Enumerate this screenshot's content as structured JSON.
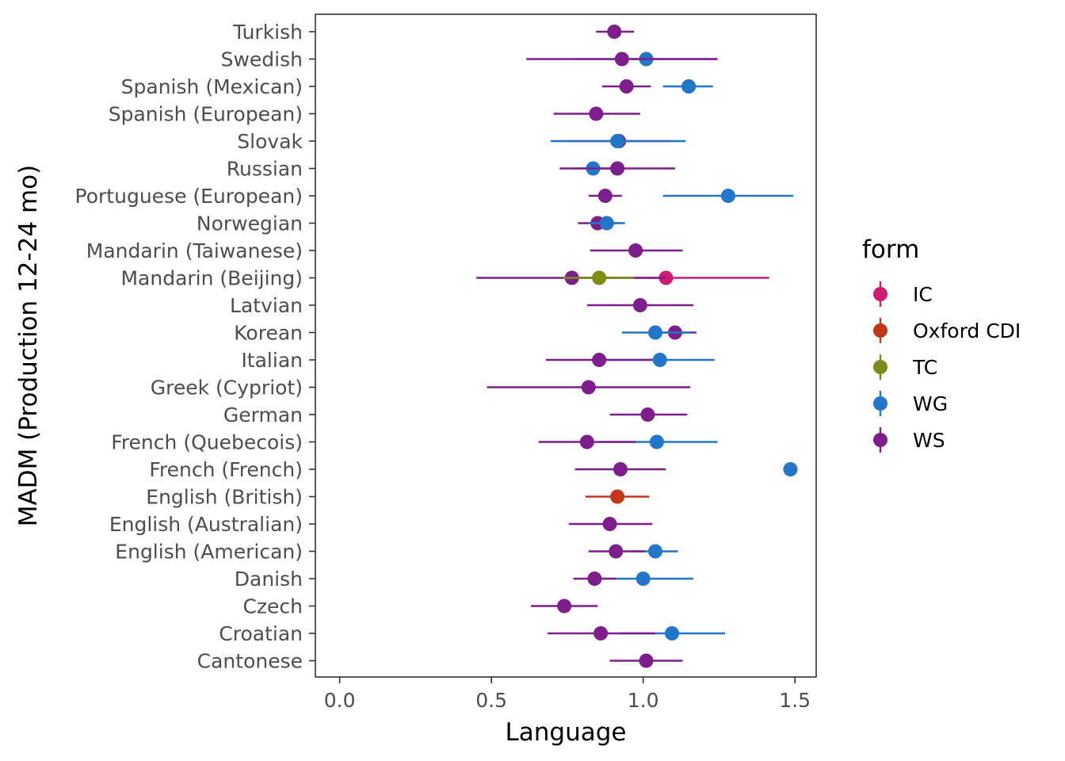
{
  "chart_data": {
    "type": "scatter",
    "xlabel": "Language",
    "ylabel": "MADM (Production 12-24 mo)",
    "xlim": [
      -0.08,
      1.57
    ],
    "x_ticks": [
      "0.0",
      "0.5",
      "1.0",
      "1.5"
    ],
    "x_tick_values": [
      0,
      0.5,
      1.0,
      1.5
    ],
    "grid": false,
    "legend": {
      "title": "form",
      "placement": "right",
      "entries": [
        "IC",
        "Oxford CDI",
        "TC",
        "WG",
        "WS"
      ]
    },
    "colors": {
      "IC": "#d01c70",
      "Oxford CDI": "#c4361a",
      "TC": "#7c8c14",
      "WG": "#2176c9",
      "WS": "#7e1e8c"
    },
    "categories": [
      "Turkish",
      "Swedish",
      "Spanish (Mexican)",
      "Spanish (European)",
      "Slovak",
      "Russian",
      "Portuguese (European)",
      "Norwegian",
      "Mandarin (Taiwanese)",
      "Mandarin (Beijing)",
      "Latvian",
      "Korean",
      "Italian",
      "Greek (Cypriot)",
      "German",
      "French (Quebecois)",
      "French (French)",
      "English (British)",
      "English (Australian)",
      "English (American)",
      "Danish",
      "Czech",
      "Croatian",
      "Cantonese"
    ],
    "points": [
      {
        "language": "Turkish",
        "form": "WS",
        "value": 0.905,
        "lo": 0.845,
        "hi": 0.97
      },
      {
        "language": "Swedish",
        "form": "WG",
        "value": 1.01,
        "lo": 0.775,
        "hi": 1.245
      },
      {
        "language": "Swedish",
        "form": "WS",
        "value": 0.93,
        "lo": 0.615,
        "hi": 1.245
      },
      {
        "language": "Spanish (Mexican)",
        "form": "WG",
        "value": 1.15,
        "lo": 1.065,
        "hi": 1.23
      },
      {
        "language": "Spanish (Mexican)",
        "form": "WS",
        "value": 0.945,
        "lo": 0.865,
        "hi": 1.025
      },
      {
        "language": "Spanish (European)",
        "form": "WS",
        "value": 0.845,
        "lo": 0.705,
        "hi": 0.99
      },
      {
        "language": "Slovak",
        "form": "WS",
        "value": 0.92,
        "lo": 0.75,
        "hi": 1.09
      },
      {
        "language": "Slovak",
        "form": "WG",
        "value": 0.915,
        "lo": 0.695,
        "hi": 1.14
      },
      {
        "language": "Russian",
        "form": "WG",
        "value": 0.835,
        "lo": 0.77,
        "hi": 0.9
      },
      {
        "language": "Russian",
        "form": "WS",
        "value": 0.915,
        "lo": 0.725,
        "hi": 1.105
      },
      {
        "language": "Portuguese (European)",
        "form": "WG",
        "value": 1.28,
        "lo": 1.065,
        "hi": 1.495
      },
      {
        "language": "Portuguese (European)",
        "form": "WS",
        "value": 0.875,
        "lo": 0.82,
        "hi": 0.93
      },
      {
        "language": "Norwegian",
        "form": "WS",
        "value": 0.85,
        "lo": 0.785,
        "hi": 0.915
      },
      {
        "language": "Norwegian",
        "form": "WG",
        "value": 0.88,
        "lo": 0.82,
        "hi": 0.94
      },
      {
        "language": "Mandarin (Taiwanese)",
        "form": "WS",
        "value": 0.975,
        "lo": 0.825,
        "hi": 1.13
      },
      {
        "language": "Mandarin (Beijing)",
        "form": "IC",
        "value": 1.075,
        "lo": 0.735,
        "hi": 1.415
      },
      {
        "language": "Mandarin (Beijing)",
        "form": "WS",
        "value": 0.765,
        "lo": 0.45,
        "hi": 1.075
      },
      {
        "language": "Mandarin (Beijing)",
        "form": "TC",
        "value": 0.855,
        "lo": 0.735,
        "hi": 0.97
      },
      {
        "language": "Latvian",
        "form": "WS",
        "value": 0.99,
        "lo": 0.815,
        "hi": 1.165
      },
      {
        "language": "Korean",
        "form": "WS",
        "value": 1.105,
        "lo": 1.035,
        "hi": 1.175
      },
      {
        "language": "Korean",
        "form": "WG",
        "value": 1.04,
        "lo": 0.93,
        "hi": 1.155
      },
      {
        "language": "Italian",
        "form": "WG",
        "value": 1.055,
        "lo": 0.875,
        "hi": 1.235
      },
      {
        "language": "Italian",
        "form": "WS",
        "value": 0.855,
        "lo": 0.68,
        "hi": 1.03
      },
      {
        "language": "Greek (Cypriot)",
        "form": "WS",
        "value": 0.82,
        "lo": 0.485,
        "hi": 1.155
      },
      {
        "language": "German",
        "form": "WS",
        "value": 1.015,
        "lo": 0.89,
        "hi": 1.145
      },
      {
        "language": "French (Quebecois)",
        "form": "WG",
        "value": 1.045,
        "lo": 0.855,
        "hi": 1.245
      },
      {
        "language": "French (Quebecois)",
        "form": "WS",
        "value": 0.815,
        "lo": 0.655,
        "hi": 0.975
      },
      {
        "language": "French (French)",
        "form": "WS",
        "value": 0.925,
        "lo": 0.775,
        "hi": 1.075
      },
      {
        "language": "French (French)",
        "form": "WG",
        "value": 1.485,
        "lo": 1.485,
        "hi": 1.485
      },
      {
        "language": "English (British)",
        "form": "Oxford CDI",
        "value": 0.915,
        "lo": 0.81,
        "hi": 1.02
      },
      {
        "language": "English (Australian)",
        "form": "WS",
        "value": 0.89,
        "lo": 0.755,
        "hi": 1.03
      },
      {
        "language": "English (American)",
        "form": "WG",
        "value": 1.04,
        "lo": 0.96,
        "hi": 1.115
      },
      {
        "language": "English (American)",
        "form": "WS",
        "value": 0.91,
        "lo": 0.82,
        "hi": 1.005
      },
      {
        "language": "Danish",
        "form": "WG",
        "value": 1.0,
        "lo": 0.835,
        "hi": 1.165
      },
      {
        "language": "Danish",
        "form": "WS",
        "value": 0.84,
        "lo": 0.77,
        "hi": 0.91
      },
      {
        "language": "Czech",
        "form": "WS",
        "value": 0.74,
        "lo": 0.63,
        "hi": 0.85
      },
      {
        "language": "Croatian",
        "form": "WG",
        "value": 1.095,
        "lo": 0.92,
        "hi": 1.27
      },
      {
        "language": "Croatian",
        "form": "WS",
        "value": 0.86,
        "lo": 0.685,
        "hi": 1.04
      },
      {
        "language": "Cantonese",
        "form": "WS",
        "value": 1.01,
        "lo": 0.89,
        "hi": 1.13
      }
    ]
  }
}
